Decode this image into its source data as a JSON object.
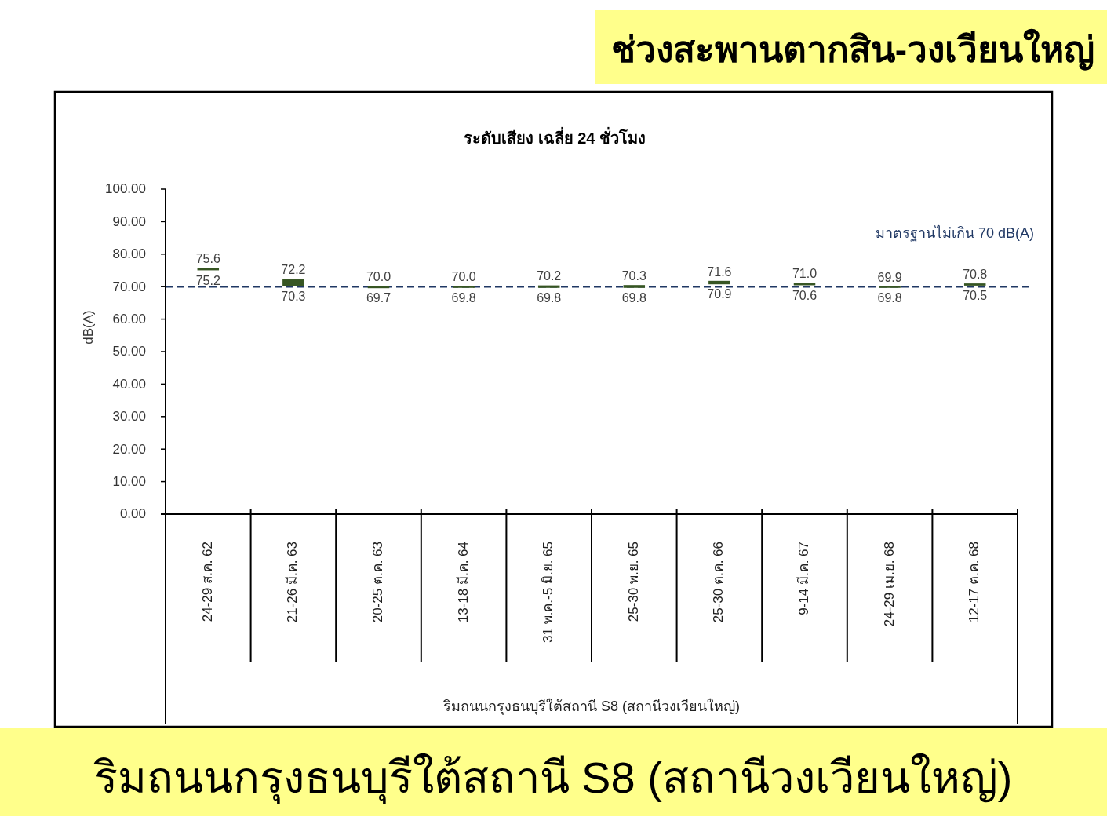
{
  "chart_data": {
    "type": "bar",
    "title": "ช่วงสะพานตากสิน-วงเวียนใหญ่",
    "subtitle": "ระดับเสียง เฉลี่ย 24 ชั่วโมง",
    "xlabel": "ริมถนนกรุงธนบุรีใต้สถานี S8 (สถานีวงเวียนใหญ่)",
    "ylabel": "dB(A)",
    "categories": [
      "24-29 ส.ค. 62",
      "21-26 มี.ค. 63",
      "20-25 ต.ค. 63",
      "13-18 มี.ค. 64",
      "31 พ.ค.-5 มิ.ย. 65",
      "25-30 พ.ย. 65",
      "25-30 ต.ค. 66",
      "9-14 มี.ค. 67",
      "24-29 เม.ย. 68",
      "12-17 ต.ค. 68"
    ],
    "base": [
      75.2,
      70.3,
      69.7,
      69.8,
      69.8,
      69.8,
      70.9,
      70.6,
      69.8,
      70.5
    ],
    "values": [
      0.4,
      1.9,
      0.3,
      0.2,
      0.4,
      0.5,
      0.7,
      0.4,
      0.1,
      0.3
    ],
    "color": "#375623",
    "ylim": [
      0,
      100
    ],
    "yticks": [
      {
        "value": 0,
        "label": "0.00"
      },
      {
        "value": 10,
        "label": "10.00"
      },
      {
        "value": 20,
        "label": "20.00"
      },
      {
        "value": 30,
        "label": "30.00"
      },
      {
        "value": 40,
        "label": "40.00"
      },
      {
        "value": 50,
        "label": "50.00"
      },
      {
        "value": 60,
        "label": "60.00"
      },
      {
        "value": 70,
        "label": "70.00"
      },
      {
        "value": 80,
        "label": "80.00"
      },
      {
        "value": 90,
        "label": "90.00"
      },
      {
        "value": 100,
        "label": "100.00"
      }
    ],
    "ref_lines": [
      {
        "axis": "y",
        "value": 70,
        "label": "มาตรฐานไม่เกิน 70 dB(A)",
        "color": "#203864",
        "line_style": "dashed"
      }
    ],
    "annotations": [
      {
        "text": "75.6",
        "x": "24-29 ส.ค. 62",
        "y": 75.6
      },
      {
        "text": "75.2",
        "x": "24-29 ส.ค. 62",
        "y": 75.2
      },
      {
        "text": "72.2",
        "x": "21-26 มี.ค. 63",
        "y": 72.2
      },
      {
        "text": "70.3",
        "x": "21-26 มี.ค. 63",
        "y": 70.3
      },
      {
        "text": "70.0",
        "x": "20-25 ต.ค. 63",
        "y": 70.0
      },
      {
        "text": "69.7",
        "x": "20-25 ต.ค. 63",
        "y": 69.7
      },
      {
        "text": "70.0",
        "x": "13-18 มี.ค. 64",
        "y": 70.0
      },
      {
        "text": "69.8",
        "x": "13-18 มี.ค. 64",
        "y": 69.8
      },
      {
        "text": "70.2",
        "x": "31 พ.ค.-5 มิ.ย. 65",
        "y": 70.2
      },
      {
        "text": "69.8",
        "x": "31 พ.ค.-5 มิ.ย. 65",
        "y": 69.8
      },
      {
        "text": "70.3",
        "x": "25-30 พ.ย. 65",
        "y": 70.3
      },
      {
        "text": "69.8",
        "x": "25-30 พ.ย. 65",
        "y": 69.8
      },
      {
        "text": "71.6",
        "x": "25-30 ต.ค. 66",
        "y": 71.6
      },
      {
        "text": "70.9",
        "x": "25-30 ต.ค. 66",
        "y": 70.9
      },
      {
        "text": "71.0",
        "x": "9-14 มี.ค. 67",
        "y": 71.0
      },
      {
        "text": "70.6",
        "x": "9-14 มี.ค. 67",
        "y": 70.6
      },
      {
        "text": "69.9",
        "x": "24-29 เม.ย. 68",
        "y": 69.9
      },
      {
        "text": "69.8",
        "x": "24-29 เม.ย. 68",
        "y": 69.8
      },
      {
        "text": "70.8",
        "x": "12-17 ต.ค. 68",
        "y": 70.8
      },
      {
        "text": "70.5",
        "x": "12-17 ต.ค. 68",
        "y": 70.5
      },
      "ริมถนนกรุงธนบุรีใต้สถานี S8 (สถานีวงเวียนใหญ่)"
    ]
  }
}
